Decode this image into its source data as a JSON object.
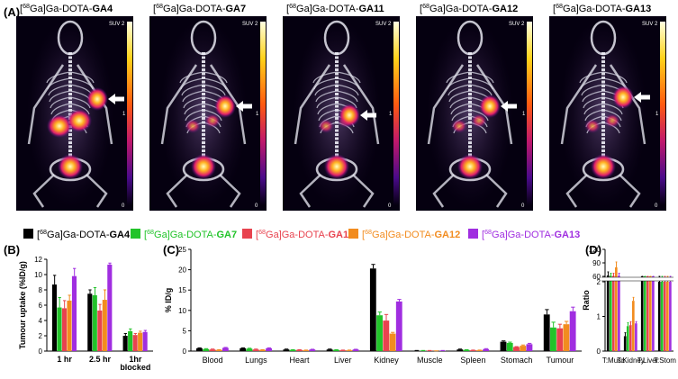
{
  "panel_labels": {
    "a": "(A)",
    "b": "(B)",
    "c": "(C)",
    "d": "(D)"
  },
  "colors": {
    "GA4": "#000000",
    "GA7": "#22c32a",
    "GA11": "#e8434f",
    "GA12": "#f28c1f",
    "GA13": "#a02ee0"
  },
  "pet_images": [
    {
      "prefix": "[",
      "sup": "68",
      "mid": "Ga]Ga-DOTA-",
      "compound": "GA4",
      "scale_label": "SUV",
      "scale_max": "2",
      "scale_mid": "1",
      "scale_min": "0"
    },
    {
      "prefix": "[",
      "sup": "68",
      "mid": "Ga]Ga-DOTA-",
      "compound": "GA7",
      "scale_label": "SUV",
      "scale_max": "2",
      "scale_mid": "1",
      "scale_min": "0"
    },
    {
      "prefix": "[",
      "sup": "68",
      "mid": "Ga]Ga-DOTA-",
      "compound": "GA11",
      "scale_label": "SUV",
      "scale_max": "2",
      "scale_mid": "1",
      "scale_min": "0"
    },
    {
      "prefix": "[",
      "sup": "68",
      "mid": "Ga]Ga-DOTA-",
      "compound": "GA12",
      "scale_label": "SUV",
      "scale_max": "2",
      "scale_mid": "1",
      "scale_min": "0"
    },
    {
      "prefix": "[",
      "sup": "68",
      "mid": "Ga]Ga-DOTA-",
      "compound": "GA13",
      "scale_label": "SUV",
      "scale_max": "2",
      "scale_mid": "1",
      "scale_min": "0"
    }
  ],
  "legend": [
    {
      "prefix": "[",
      "sup": "68",
      "mid": "Ga]Ga-DOTA-",
      "compound": "GA4"
    },
    {
      "prefix": "[",
      "sup": "68",
      "mid": "Ga]Ga-DOTA-",
      "compound": "GA7"
    },
    {
      "prefix": "[",
      "sup": "68",
      "mid": "Ga]Ga-DOTA-",
      "compound": "GA11"
    },
    {
      "prefix": "[",
      "sup": "68",
      "mid": "Ga]Ga-DOTA-",
      "compound": "GA12"
    },
    {
      "prefix": "[",
      "sup": "68",
      "mid": "Ga]Ga-DOTA-",
      "compound": "GA13"
    }
  ],
  "chart_data": [
    {
      "type": "bar",
      "panel": "B",
      "ylabel": "Tumour uptake (%ID/g)",
      "ylim": [
        0,
        12
      ],
      "yticks": [
        "0",
        "2",
        "4",
        "6",
        "8",
        "10",
        "12"
      ],
      "categories": [
        "1 hr",
        "2.5 hr",
        "1hr blocked"
      ],
      "series": [
        {
          "name": "GA4",
          "values": [
            8.7,
            7.5,
            2.0
          ],
          "errors": [
            1.2,
            0.5,
            0.3
          ]
        },
        {
          "name": "GA7",
          "values": [
            5.7,
            7.3,
            2.6
          ],
          "errors": [
            1.3,
            1.0,
            0.3
          ]
        },
        {
          "name": "GA11",
          "values": [
            5.6,
            5.3,
            2.1
          ],
          "errors": [
            1.0,
            0.8,
            0.2
          ]
        },
        {
          "name": "GA12",
          "values": [
            6.6,
            6.7,
            2.4
          ],
          "errors": [
            0.7,
            1.3,
            0.2
          ]
        },
        {
          "name": "GA13",
          "values": [
            9.8,
            11.3,
            2.5
          ],
          "errors": [
            1.0,
            0.2,
            0.2
          ]
        }
      ]
    },
    {
      "type": "bar",
      "panel": "C",
      "ylabel": "% ID/g",
      "ylim": [
        0,
        25
      ],
      "yticks": [
        "0",
        "5",
        "10",
        "15",
        "20",
        "25"
      ],
      "categories": [
        "Blood",
        "Lungs",
        "Heart",
        "Liver",
        "Kidney",
        "Muscle",
        "Spleen",
        "Stomach",
        "Tumour"
      ],
      "series": [
        {
          "name": "GA4",
          "values": [
            0.7,
            0.7,
            0.4,
            0.4,
            20.3,
            0.1,
            0.4,
            2.3,
            9.0
          ],
          "errors": [
            0.1,
            0.1,
            0.1,
            0.1,
            1.0,
            0.05,
            0.1,
            0.2,
            1.2
          ]
        },
        {
          "name": "GA7",
          "values": [
            0.5,
            0.6,
            0.3,
            0.3,
            8.8,
            0.1,
            0.3,
            2.0,
            5.8
          ],
          "errors": [
            0.1,
            0.1,
            0.05,
            0.05,
            0.8,
            0.05,
            0.05,
            0.2,
            1.3
          ]
        },
        {
          "name": "GA11",
          "values": [
            0.4,
            0.4,
            0.3,
            0.2,
            7.5,
            0.1,
            0.2,
            1.0,
            5.6
          ],
          "errors": [
            0.1,
            0.1,
            0.05,
            0.05,
            1.5,
            0.05,
            0.05,
            0.1,
            1.0
          ]
        },
        {
          "name": "GA12",
          "values": [
            0.3,
            0.3,
            0.2,
            0.2,
            4.3,
            0.05,
            0.2,
            1.3,
            6.6
          ],
          "errors": [
            0.05,
            0.05,
            0.05,
            0.05,
            0.3,
            0.02,
            0.05,
            0.2,
            0.7
          ]
        },
        {
          "name": "GA13",
          "values": [
            0.8,
            0.7,
            0.4,
            0.4,
            12.2,
            0.1,
            0.5,
            1.7,
            9.8
          ],
          "errors": [
            0.1,
            0.1,
            0.05,
            0.05,
            0.5,
            0.05,
            0.1,
            0.2,
            1.0
          ]
        }
      ]
    },
    {
      "type": "bar",
      "panel": "D",
      "ylabel": "Ratio",
      "ylim": [
        0,
        120
      ],
      "axis_break": true,
      "yticks_lower": [
        "0",
        "1",
        "2"
      ],
      "yticks_upper": [
        "60",
        "90",
        "120"
      ],
      "categories": [
        "T:Musc",
        "T:Kidney",
        "T:Liver",
        "T:Stom"
      ],
      "series": [
        {
          "name": "GA4",
          "values": [
            62,
            0.43,
            23,
            2.0
          ],
          "errors": [
            8,
            0.1,
            2,
            0.05
          ]
        },
        {
          "name": "GA7",
          "values": [
            61,
            0.72,
            24,
            2.0
          ],
          "errors": [
            6,
            0.1,
            2,
            0.05
          ]
        },
        {
          "name": "GA11",
          "values": [
            61,
            0.75,
            22,
            2.0
          ],
          "errors": [
            6,
            0.1,
            2,
            0.05
          ]
        },
        {
          "name": "GA12",
          "values": [
            80,
            1.45,
            29,
            2.0
          ],
          "errors": [
            12,
            0.1,
            4,
            0.05
          ]
        },
        {
          "name": "GA13",
          "values": [
            61,
            0.8,
            25,
            2.0
          ],
          "errors": [
            6,
            0.05,
            2,
            0.05
          ]
        }
      ]
    }
  ]
}
